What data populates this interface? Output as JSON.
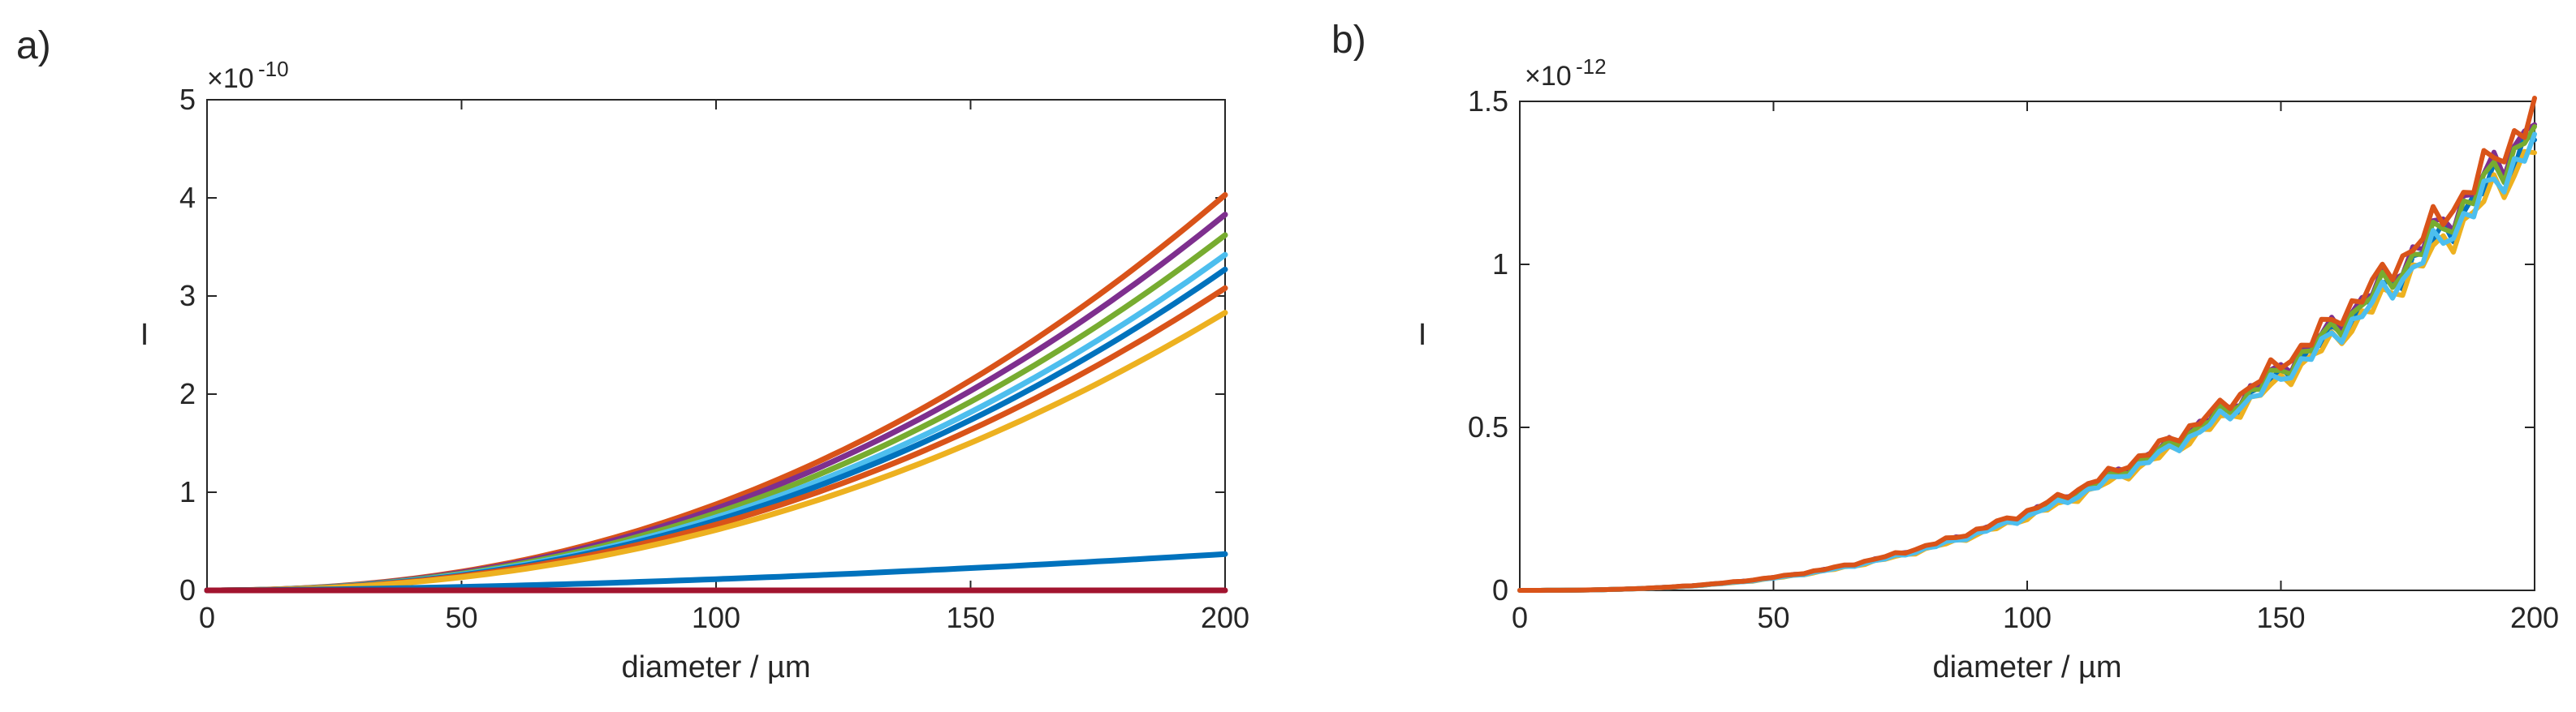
{
  "chart_data": [
    {
      "panel_label": "a)",
      "type": "line",
      "xlabel": "diameter / µm",
      "ylabel": "I",
      "y_exponent_label": "×10",
      "y_exponent_power": "-10",
      "xlim": [
        0,
        200
      ],
      "ylim": [
        0,
        5
      ],
      "xticks": [
        0,
        50,
        100,
        150,
        200
      ],
      "yticks": [
        0,
        1,
        2,
        3,
        4,
        5
      ],
      "xtick_labels": [
        "0",
        "50",
        "100",
        "150",
        "200"
      ],
      "ytick_labels": [
        "0",
        "1",
        "2",
        "3",
        "4",
        "5"
      ],
      "series": [
        {
          "color": "#D95319",
          "end_value": 4.03,
          "exponent": 2.2
        },
        {
          "color": "#7E2F8E",
          "end_value": 3.83,
          "exponent": 2.2
        },
        {
          "color": "#77AC30",
          "end_value": 3.62,
          "exponent": 2.2
        },
        {
          "color": "#4DBEEE",
          "end_value": 3.42,
          "exponent": 2.2
        },
        {
          "color": "#0072BD",
          "end_value": 3.27,
          "exponent": 2.2
        },
        {
          "color": "#D95319",
          "end_value": 3.08,
          "exponent": 2.2
        },
        {
          "color": "#EDB120",
          "end_value": 2.83,
          "exponent": 2.2
        },
        {
          "color": "#0072BD",
          "end_value": 0.37,
          "exponent": 1.7
        },
        {
          "color": "#A2142F",
          "end_value": 0.0,
          "exponent": 1.0
        }
      ]
    },
    {
      "panel_label": "b)",
      "type": "line",
      "xlabel": "diameter / µm",
      "ylabel": "I",
      "y_exponent_label": "×10",
      "y_exponent_power": "-12",
      "xlim": [
        0,
        200
      ],
      "ylim": [
        0,
        1.5
      ],
      "xticks": [
        0,
        50,
        100,
        150,
        200
      ],
      "yticks": [
        0,
        0.5,
        1,
        1.5
      ],
      "xtick_labels": [
        "0",
        "50",
        "100",
        "150",
        "200"
      ],
      "ytick_labels": [
        "0",
        "0.5",
        "1",
        "1.5"
      ],
      "series": [
        {
          "color": "#0072BD",
          "end_value": 1.4,
          "exponent": 2.6
        },
        {
          "color": "#EDB120",
          "end_value": 1.36,
          "exponent": 2.6
        },
        {
          "color": "#7E2F8E",
          "end_value": 1.44,
          "exponent": 2.6
        },
        {
          "color": "#77AC30",
          "end_value": 1.42,
          "exponent": 2.6
        },
        {
          "color": "#4DBEEE",
          "end_value": 1.38,
          "exponent": 2.6
        },
        {
          "color": "#D95319",
          "end_value": 1.47,
          "exponent": 2.6
        }
      ]
    }
  ]
}
